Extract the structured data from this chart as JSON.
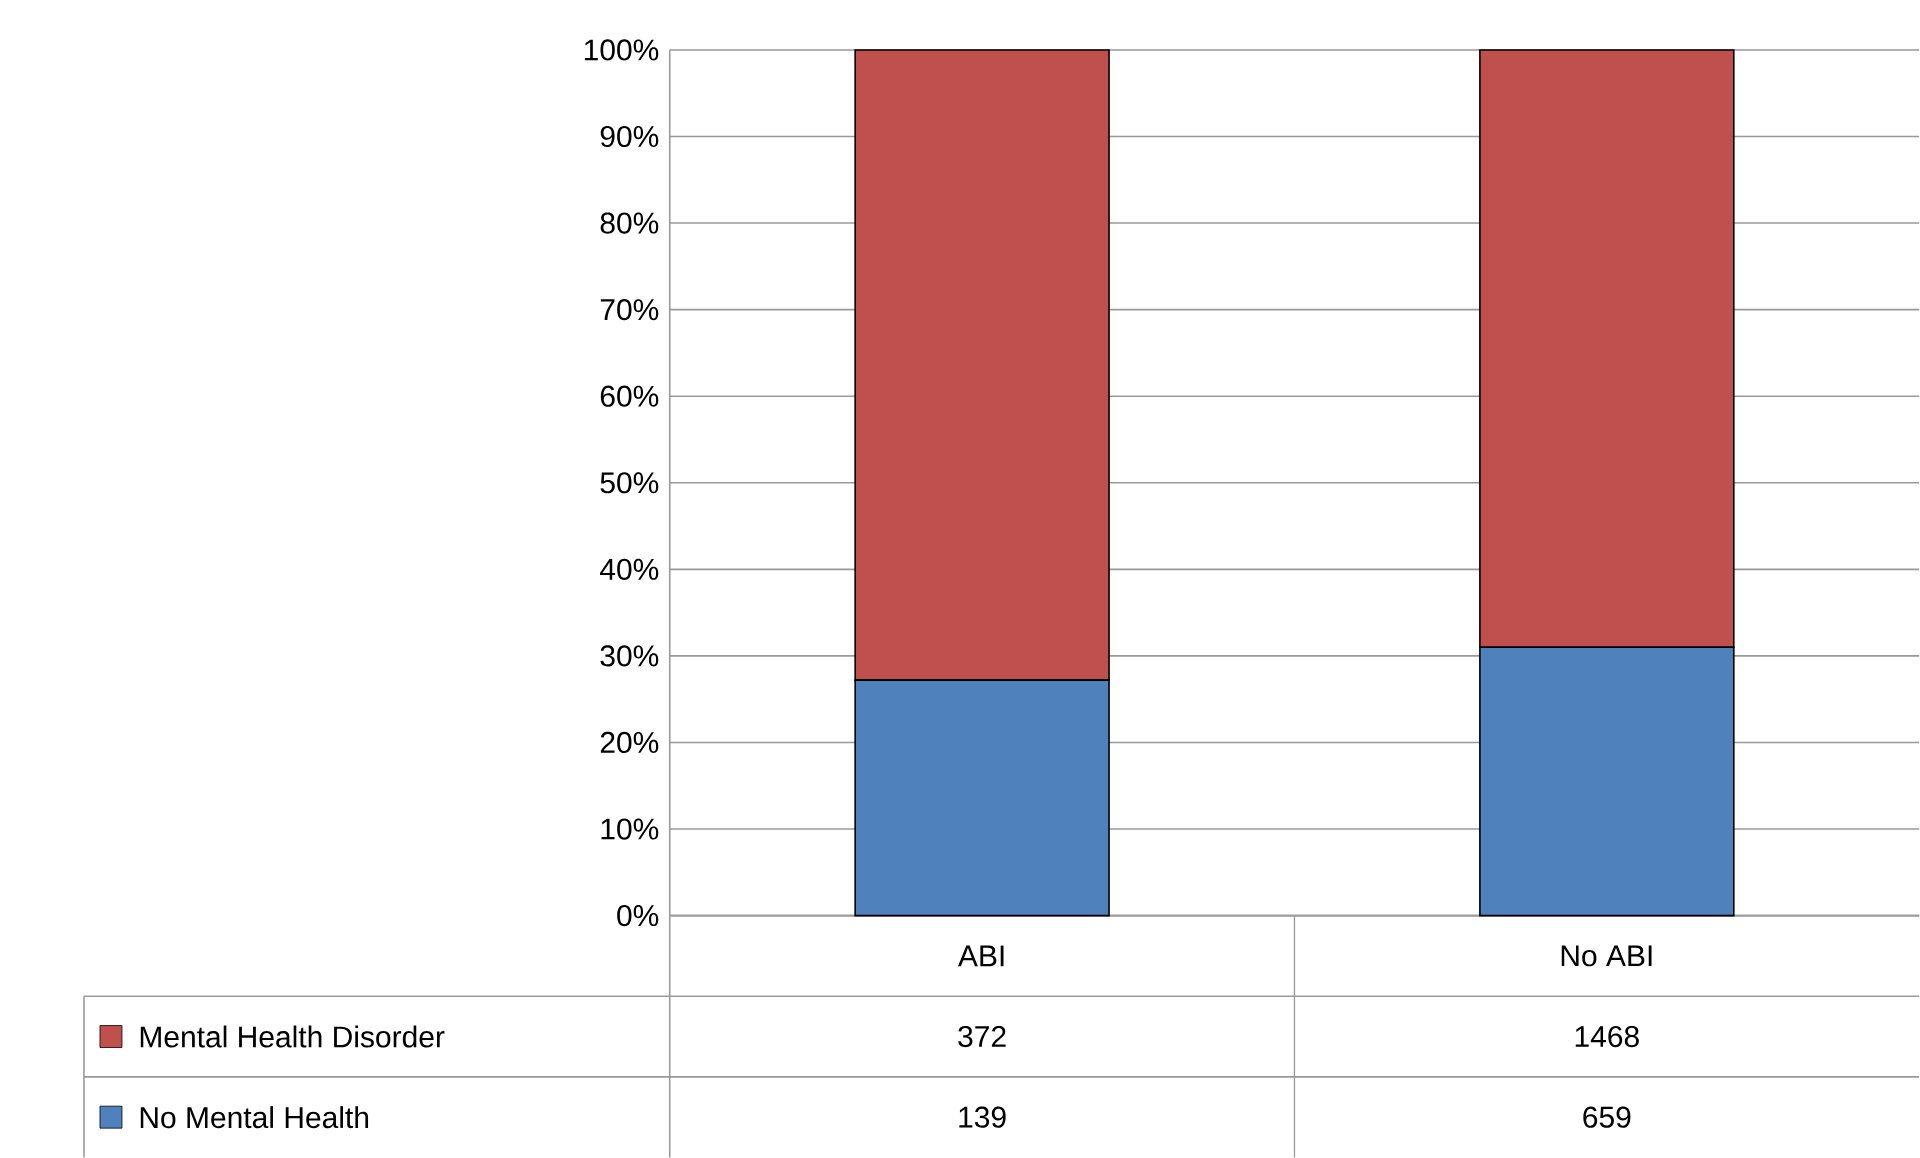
{
  "chart_data": {
    "type": "bar",
    "stacked": true,
    "categories": [
      "ABI",
      "No ABI"
    ],
    "series": [
      {
        "name": "No Mental Health",
        "color": "#4f81bd",
        "values": [
          27.2,
          31.0
        ]
      },
      {
        "name": "Mental Health Disorder",
        "color": "#c0504d",
        "values": [
          72.8,
          69.0
        ]
      }
    ],
    "annotations": [
      "139",
      "659",
      "372",
      "1468"
    ],
    "ylim": [
      0,
      100
    ],
    "yticks": [
      {
        "value": 0,
        "label": "0%"
      },
      {
        "value": 10,
        "label": "10%"
      },
      {
        "value": 20,
        "label": "20%"
      },
      {
        "value": 30,
        "label": "30%"
      },
      {
        "value": 40,
        "label": "40%"
      },
      {
        "value": 50,
        "label": "50%"
      },
      {
        "value": 60,
        "label": "60%"
      },
      {
        "value": 70,
        "label": "70%"
      },
      {
        "value": 80,
        "label": "80%"
      },
      {
        "value": 90,
        "label": "90%"
      },
      {
        "value": 100,
        "label": "100%"
      }
    ],
    "grid": "y",
    "legend": "bottom left"
  }
}
